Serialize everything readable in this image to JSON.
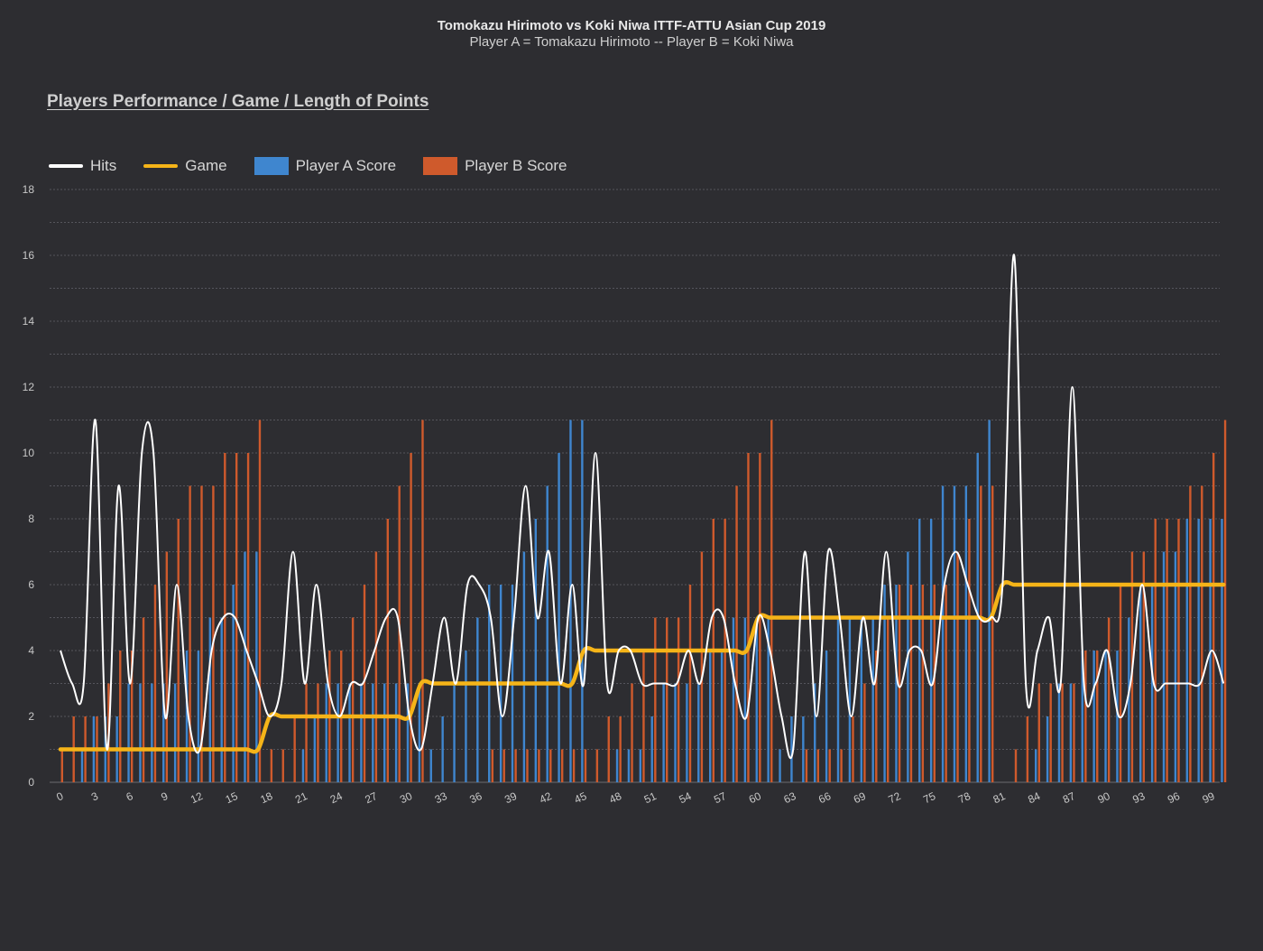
{
  "header": {
    "title": "Tomokazu Hirimoto vs Koki Niwa ITTF-ATTU Asian Cup 2019",
    "subtitle": "Player A = Tomakazu Hirimoto  -- Player B = Koki Niwa"
  },
  "section_title": "Players Performance / Game / Length of Points",
  "legend": [
    {
      "label": "Hits",
      "kind": "line",
      "color": "#ffffff"
    },
    {
      "label": "Game",
      "kind": "line",
      "color": "#f5b418"
    },
    {
      "label": "Player A Score",
      "kind": "box",
      "color": "#3f86cf"
    },
    {
      "label": "Player B Score",
      "kind": "box",
      "color": "#cf5a2c"
    }
  ],
  "chart_data": {
    "type": "bar+line",
    "x": [
      0,
      1,
      2,
      3,
      4,
      5,
      6,
      7,
      8,
      9,
      10,
      11,
      12,
      13,
      14,
      15,
      16,
      17,
      18,
      19,
      20,
      21,
      22,
      23,
      24,
      25,
      26,
      27,
      28,
      29,
      30,
      31,
      32,
      33,
      34,
      35,
      36,
      37,
      38,
      39,
      40,
      41,
      42,
      43,
      44,
      45,
      46,
      47,
      48,
      49,
      50,
      51,
      52,
      53,
      54,
      55,
      56,
      57,
      58,
      59,
      60,
      61,
      62,
      63,
      64,
      65,
      66,
      67,
      68,
      69,
      70,
      71,
      72,
      73,
      74,
      75,
      76,
      77,
      78,
      79,
      80,
      81,
      82,
      83,
      84,
      85,
      86,
      87,
      88,
      89,
      90,
      91,
      92,
      93,
      94,
      95,
      96,
      97,
      98,
      99,
      100
    ],
    "xticks": [
      0,
      3,
      6,
      9,
      12,
      15,
      18,
      21,
      24,
      27,
      30,
      33,
      36,
      39,
      42,
      45,
      48,
      51,
      54,
      57,
      60,
      63,
      66,
      69,
      72,
      75,
      78,
      81,
      84,
      87,
      90,
      93,
      96,
      99
    ],
    "ylim": [
      0,
      18
    ],
    "yticks": [
      0,
      2,
      4,
      6,
      8,
      10,
      12,
      14,
      16,
      18
    ],
    "series": [
      {
        "name": "Hits",
        "type": "line",
        "color": "#ffffff",
        "values": [
          4,
          3,
          3,
          11,
          1,
          9,
          3,
          10,
          10,
          2,
          6,
          2,
          1,
          4,
          5,
          5,
          4,
          3,
          2,
          3,
          7,
          3,
          6,
          3,
          2,
          3,
          3,
          4,
          5,
          5,
          2,
          1,
          3,
          5,
          3,
          6,
          6,
          5,
          2,
          5,
          9,
          5,
          7,
          3,
          6,
          3,
          10,
          3,
          4,
          4,
          3,
          3,
          3,
          3,
          4,
          3,
          5,
          5,
          3,
          2,
          5,
          4,
          2,
          1,
          7,
          2,
          7,
          5,
          2,
          5,
          3,
          7,
          3,
          4,
          4,
          3,
          6,
          7,
          6,
          5,
          5,
          6,
          16,
          3,
          4,
          5,
          3,
          12,
          3,
          3,
          4,
          2,
          3,
          6,
          3,
          3,
          3,
          3,
          3,
          4,
          3
        ]
      },
      {
        "name": "Game",
        "type": "line",
        "color": "#f5b418",
        "values": [
          1,
          1,
          1,
          1,
          1,
          1,
          1,
          1,
          1,
          1,
          1,
          1,
          1,
          1,
          1,
          1,
          1,
          1,
          2,
          2,
          2,
          2,
          2,
          2,
          2,
          2,
          2,
          2,
          2,
          2,
          2,
          3,
          3,
          3,
          3,
          3,
          3,
          3,
          3,
          3,
          3,
          3,
          3,
          3,
          3,
          4,
          4,
          4,
          4,
          4,
          4,
          4,
          4,
          4,
          4,
          4,
          4,
          4,
          4,
          4,
          5,
          5,
          5,
          5,
          5,
          5,
          5,
          5,
          5,
          5,
          5,
          5,
          5,
          5,
          5,
          5,
          5,
          5,
          5,
          5,
          5,
          6,
          6,
          6,
          6,
          6,
          6,
          6,
          6,
          6,
          6,
          6,
          6,
          6,
          6,
          6,
          6,
          6,
          6,
          6,
          6
        ]
      },
      {
        "name": "Player A Score",
        "type": "bar",
        "color": "#3f86cf",
        "values": [
          0,
          0,
          1,
          2,
          2,
          2,
          3,
          3,
          3,
          3,
          3,
          4,
          4,
          5,
          5,
          6,
          7,
          7,
          0,
          0,
          0,
          1,
          2,
          3,
          3,
          3,
          3,
          3,
          3,
          3,
          3,
          3,
          1,
          2,
          3,
          4,
          5,
          6,
          6,
          6,
          7,
          8,
          9,
          10,
          11,
          11,
          0,
          0,
          1,
          1,
          1,
          2,
          3,
          3,
          3,
          3,
          4,
          4,
          5,
          5,
          5,
          5,
          1,
          2,
          2,
          3,
          4,
          5,
          5,
          5,
          5,
          6,
          6,
          7,
          8,
          8,
          9,
          9,
          9,
          10,
          11,
          0,
          0,
          0,
          1,
          2,
          3,
          3,
          4,
          4,
          4,
          4,
          5,
          6,
          6,
          7,
          7,
          8,
          8,
          8,
          8
        ]
      },
      {
        "name": "Player B Score",
        "type": "bar",
        "color": "#cf5a2c",
        "values": [
          1,
          2,
          2,
          2,
          3,
          4,
          4,
          5,
          6,
          7,
          8,
          9,
          9,
          9,
          10,
          10,
          10,
          11,
          1,
          1,
          2,
          3,
          3,
          4,
          4,
          5,
          6,
          7,
          8,
          9,
          10,
          11,
          0,
          0,
          0,
          0,
          0,
          1,
          1,
          1,
          1,
          1,
          1,
          1,
          1,
          1,
          1,
          2,
          2,
          3,
          4,
          5,
          5,
          5,
          6,
          7,
          8,
          8,
          9,
          10,
          10,
          11,
          0,
          0,
          1,
          1,
          1,
          1,
          2,
          3,
          4,
          5,
          6,
          6,
          6,
          6,
          6,
          7,
          8,
          9,
          9,
          0,
          1,
          2,
          3,
          3,
          3,
          3,
          4,
          4,
          5,
          6,
          7,
          7,
          8,
          8,
          8,
          9,
          9,
          10,
          11
        ]
      }
    ]
  }
}
